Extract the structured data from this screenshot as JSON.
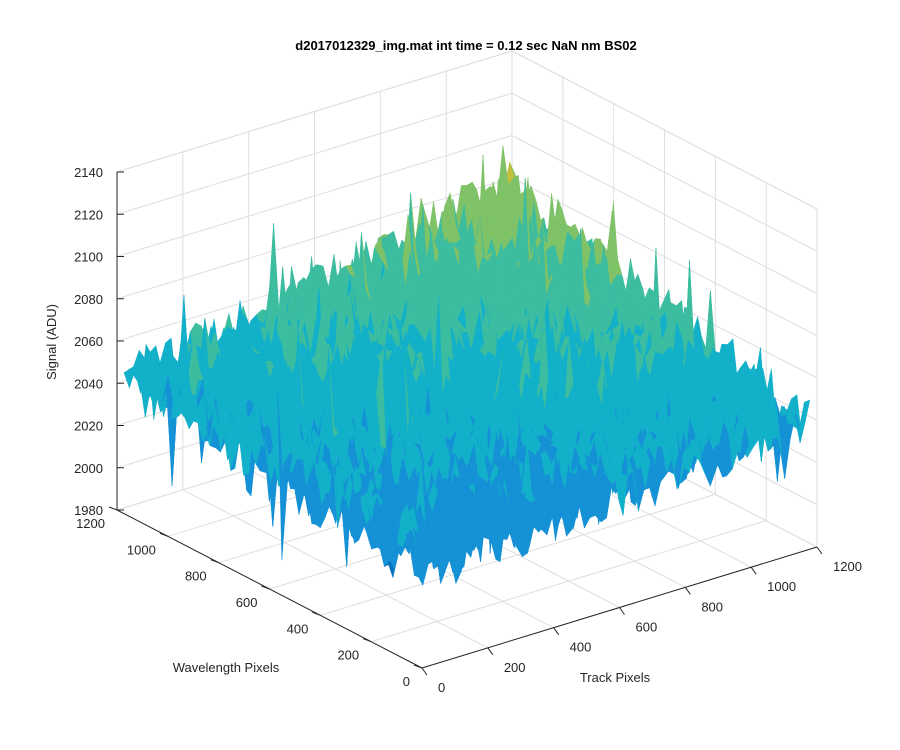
{
  "chart_data": {
    "type": "surface",
    "title": "d2017012329_img.mat int time = 0.12 sec  NaN nm BS02",
    "xlabel": "Track Pixels",
    "ylabel": "Wavelength Pixels",
    "zlabel": "Signal (ADU)",
    "xlim": [
      0,
      1200
    ],
    "ylim": [
      0,
      1200
    ],
    "zlim": [
      1980,
      2140
    ],
    "xticks": [
      0,
      200,
      400,
      600,
      800,
      1000,
      1200
    ],
    "yticks": [
      0,
      200,
      400,
      600,
      800,
      1000,
      1200
    ],
    "zticks": [
      1980,
      2000,
      2020,
      2040,
      2060,
      2080,
      2100,
      2120,
      2140
    ],
    "grid": true,
    "colormap": "parula",
    "surface_summary": {
      "baseline_signal": 2035,
      "corner_min_xy": 2025,
      "far_corner_signal": 2080,
      "peak_signal": 2135,
      "min_signal": 1985
    },
    "colors": [
      "#0072bd",
      "#1591d6",
      "#12b0c9",
      "#3cbda0",
      "#7fc267",
      "#c7be3c",
      "#f2cd33"
    ]
  }
}
